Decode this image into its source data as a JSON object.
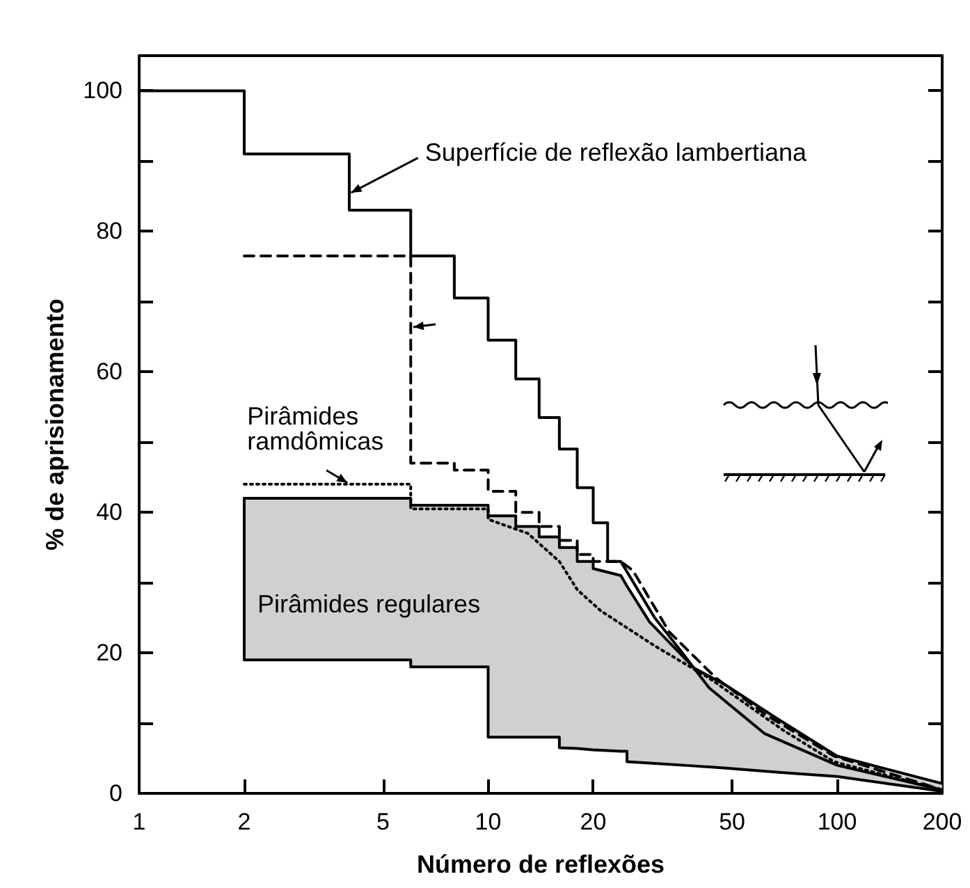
{
  "chart_data": {
    "type": "line",
    "xlabel": "Número de reflexões",
    "ylabel": "% de aprisionamento",
    "log": "x",
    "xlim": [
      1,
      200
    ],
    "xticks": [
      1,
      2,
      5,
      10,
      20,
      50,
      100,
      200
    ],
    "ylim": [
      0,
      105
    ],
    "yticks": [
      0,
      {
        "value": 10,
        "label": null
      },
      20,
      {
        "value": 30,
        "label": null
      },
      40,
      {
        "value": 50,
        "label": null
      },
      60,
      {
        "value": 70,
        "label": null
      },
      80,
      {
        "value": 90,
        "label": null
      },
      100
    ],
    "grid": false,
    "marker": "none",
    "annotations": [
      {
        "text": "Superfície de reflexão lambertiana",
        "x": 4.05,
        "y": 85.5
      },
      {
        "text": "Pirâmides ramdômicas",
        "x": 3.95,
        "y": 44.2
      },
      "Pirâmides regulares"
    ],
    "series": [
      {
        "color": "#000000",
        "line_style": "solid",
        "x": [
          1,
          2,
          2,
          4,
          4,
          6,
          6,
          8,
          8,
          10,
          10,
          12,
          12,
          14,
          14,
          16,
          16,
          18,
          18,
          20,
          20,
          22,
          22,
          24,
          30,
          36,
          43,
          62,
          100,
          200
        ],
        "values": [
          100,
          100,
          91,
          91,
          83,
          83,
          76.5,
          76.5,
          70.5,
          70.5,
          64.5,
          64.5,
          59,
          59,
          53.5,
          53.5,
          49,
          49,
          43.5,
          43.5,
          38.5,
          38.5,
          33,
          33,
          25,
          20,
          15,
          8.5,
          4,
          0.5
        ]
      },
      {
        "color": "#000000",
        "line_style": "dashed",
        "x": [
          2,
          6,
          6,
          8,
          8,
          10,
          10,
          12,
          12,
          14,
          14,
          16,
          16,
          18,
          18,
          20,
          20,
          24,
          26,
          33,
          45,
          62,
          98,
          200
        ],
        "values": [
          76.5,
          76.5,
          47,
          47,
          46,
          46,
          43,
          43,
          40,
          40,
          38,
          38,
          36,
          36,
          34,
          34,
          33,
          33,
          31.7,
          23,
          16.4,
          11.3,
          5.3,
          0.5
        ]
      },
      {
        "color": "#000000",
        "line_style": "dotted",
        "x": [
          2,
          6,
          6,
          10,
          10,
          13,
          16,
          18,
          21,
          30,
          43,
          70,
          98,
          200
        ],
        "values": [
          44,
          44,
          40.5,
          40.5,
          39,
          37,
          33,
          29,
          26,
          21,
          16.4,
          9,
          4.5,
          0.5
        ]
      },
      {
        "color": "#000000",
        "line_style": "solid",
        "x": [
          2,
          6,
          6,
          10,
          10,
          12,
          12,
          14,
          14,
          16,
          16,
          18,
          18,
          20,
          20,
          24,
          25,
          25,
          29,
          39,
          48,
          68,
          100,
          200
        ],
        "values": [
          42,
          42,
          41,
          41,
          39.5,
          39.5,
          38,
          38,
          36.5,
          36.5,
          35,
          35,
          33,
          33,
          32,
          31,
          29.5,
          29.5,
          24.4,
          17.8,
          15.4,
          10.5,
          5.3,
          1.4
        ],
        "upper": [
          42,
          42,
          41,
          41,
          39.5,
          39.5,
          38,
          38,
          36.5,
          36.5,
          35,
          35,
          33,
          33,
          32,
          31,
          29.5,
          29.5,
          24.4,
          17.8,
          15.4,
          10.5,
          5.3,
          1.4
        ],
        "lower": [
          19,
          19,
          18,
          18,
          8,
          8,
          8,
          8,
          8,
          8,
          6.5,
          6.4,
          6.4,
          6.2,
          6.2,
          6,
          6,
          4.5,
          4.3,
          3.9,
          3.6,
          3,
          2.4,
          0.3
        ]
      },
      {
        "color": "#000000",
        "line_style": "solid",
        "x": [
          2,
          2,
          6,
          6,
          10,
          10,
          16,
          16,
          18,
          20,
          24,
          25,
          25,
          29,
          39,
          48,
          68,
          100,
          200
        ],
        "values": [
          42,
          19,
          19,
          18,
          18,
          8,
          8,
          6.5,
          6.4,
          6.2,
          6,
          6,
          4.5,
          4.3,
          3.9,
          3.6,
          3,
          2.4,
          0.3
        ]
      }
    ]
  }
}
